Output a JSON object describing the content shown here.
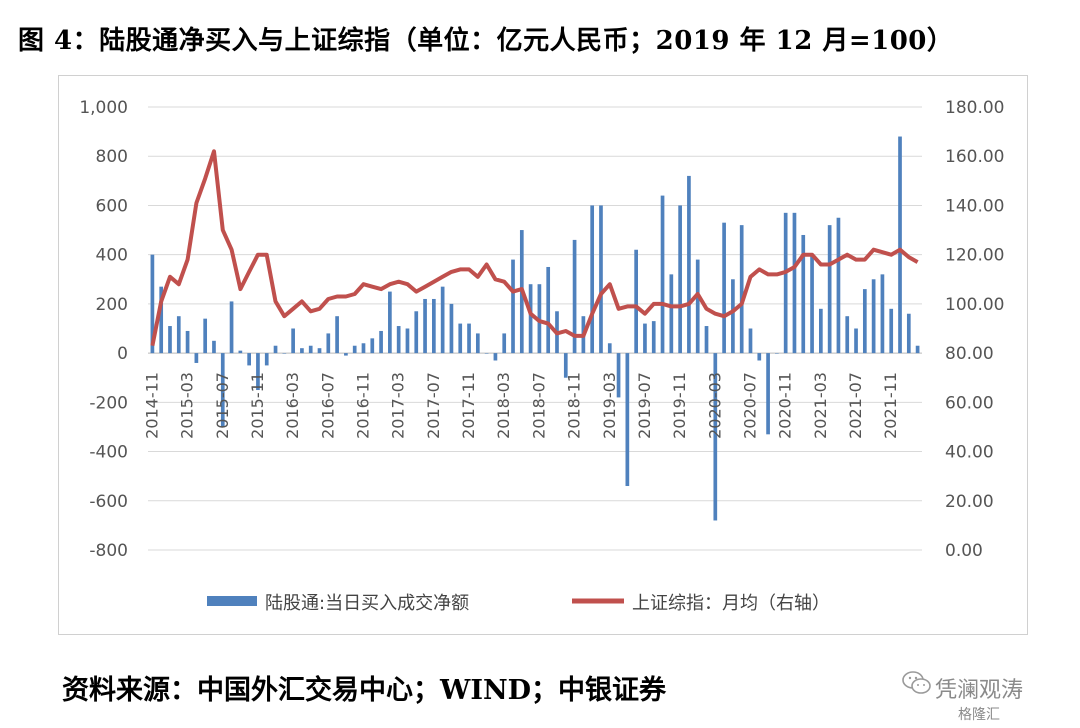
{
  "title": "图 4：陆股通净买入与上证综指（单位：亿元人民币；2019 年 12 月=100）",
  "source": "资料来源：中国外汇交易中心；WIND；中银证券",
  "watermark": {
    "line1": "凭澜观涛",
    "line2": "格隆汇",
    "icon": "wechat-icon"
  },
  "colors": {
    "bars": "#4f81bd",
    "line": "#c0504d"
  },
  "chart_data": {
    "type": "bar",
    "combo": "bar + line (dual y-axis)",
    "x_tick_labels": [
      "2014-11",
      "2015-03",
      "2015-07",
      "2015-11",
      "2016-03",
      "2016-07",
      "2016-11",
      "2017-03",
      "2017-07",
      "2017-11",
      "2018-03",
      "2018-07",
      "2018-11",
      "2019-03",
      "2019-07",
      "2019-11",
      "2020-03",
      "2020-07",
      "2020-11",
      "2021-03",
      "2021-07",
      "2021-11"
    ],
    "left_axis": {
      "range": [
        -800,
        1000
      ],
      "step": 200,
      "tick_labels": [
        "-800",
        "-600",
        "-400",
        "-200",
        "0",
        "200",
        "400",
        "600",
        "800",
        "1,000"
      ]
    },
    "right_axis": {
      "range": [
        0,
        180
      ],
      "step": 20,
      "tick_labels": [
        "0.00",
        "20.00",
        "40.00",
        "60.00",
        "80.00",
        "100.00",
        "120.00",
        "140.00",
        "160.00",
        "180.00"
      ]
    },
    "legend_position": "bottom",
    "grid": "horizontal",
    "series": [
      {
        "name": "陆股通:当日买入成交净额",
        "type": "bar",
        "axis": "left",
        "values": [
          400,
          270,
          110,
          150,
          90,
          -40,
          140,
          50,
          -300,
          210,
          10,
          -50,
          -150,
          -50,
          30,
          0,
          100,
          20,
          30,
          20,
          80,
          150,
          -10,
          30,
          40,
          60,
          90,
          250,
          110,
          100,
          170,
          220,
          220,
          270,
          200,
          120,
          120,
          80,
          0,
          -30,
          80,
          380,
          500,
          280,
          280,
          350,
          170,
          -100,
          460,
          150,
          600,
          600,
          40,
          -180,
          -540,
          420,
          120,
          130,
          640,
          320,
          600,
          720,
          380,
          110,
          -680,
          530,
          300,
          520,
          100,
          -30,
          -330,
          0,
          570,
          570,
          480,
          400,
          180,
          520,
          550,
          150,
          100,
          260,
          300,
          320,
          180,
          880,
          160,
          30
        ]
      },
      {
        "name": "上证综指：月均（右轴）",
        "type": "line",
        "axis": "right",
        "values": [
          83,
          101,
          111,
          108,
          118,
          141,
          151,
          162,
          130,
          122,
          106,
          113,
          120,
          120,
          101,
          95,
          98,
          101,
          97,
          98,
          102,
          103,
          103,
          104,
          108,
          107,
          106,
          108,
          109,
          108,
          105,
          107,
          109,
          111,
          113,
          114,
          114,
          111,
          116,
          110,
          109,
          105,
          106,
          96,
          93,
          92,
          88,
          89,
          87,
          87,
          96,
          104,
          108,
          98,
          99,
          99,
          96,
          100,
          100,
          99,
          99,
          100,
          104,
          98,
          96,
          95,
          97,
          100,
          111,
          114,
          112,
          112,
          113,
          115,
          120,
          120,
          116,
          116,
          118,
          120,
          118,
          118,
          122,
          121,
          120,
          122,
          119,
          117
        ]
      }
    ]
  }
}
